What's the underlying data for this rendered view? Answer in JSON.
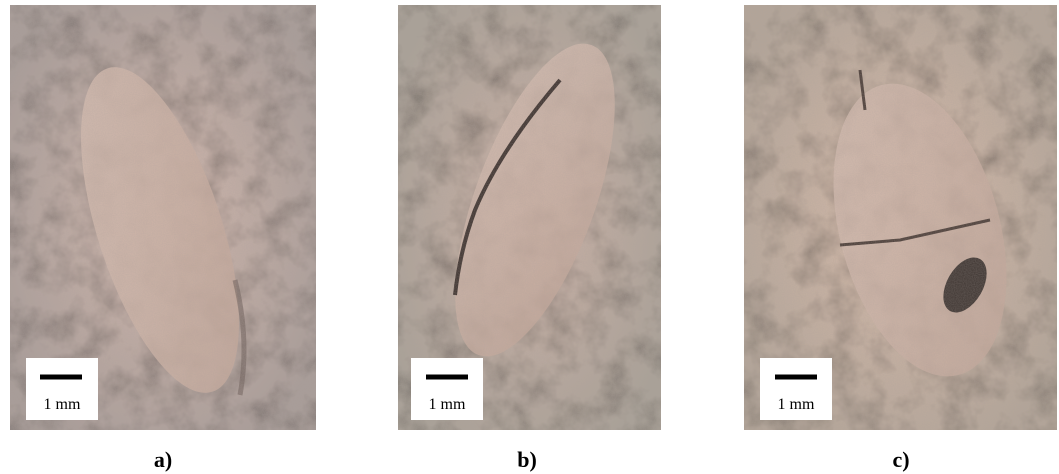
{
  "panels": [
    {
      "scale_label": "1 mm",
      "caption": "a)"
    },
    {
      "scale_label": "1 mm",
      "caption": "b)"
    },
    {
      "scale_label": "1 mm",
      "caption": "c)"
    }
  ]
}
